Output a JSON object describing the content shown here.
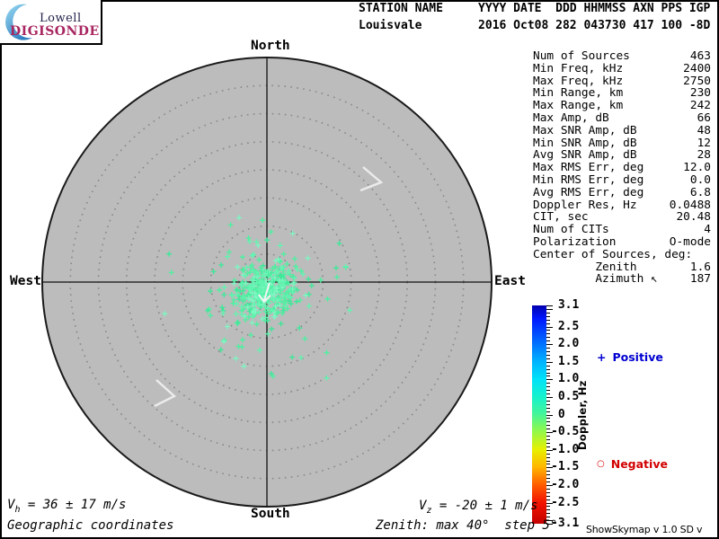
{
  "brand": {
    "top": "Lowell",
    "bottom": "DIGISONDE",
    "accent_color": "#a82560",
    "crescent_colors": [
      "#9bdcf2",
      "#2f7ec2"
    ]
  },
  "header": {
    "line1": "STATION NAME     YYYY DATE  DDD HHMMSS AXN PPS IGP",
    "line2": "Louisvale        2016 Oct08 282 043730 417 100 -8D"
  },
  "compass": {
    "north": "North",
    "south": "South",
    "east": "East",
    "west": "West"
  },
  "stats": {
    "rows": [
      {
        "label": "Num of Sources",
        "value": "463"
      },
      {
        "label": "Min Freq, kHz",
        "value": "2400"
      },
      {
        "label": "Max Freq, kHz",
        "value": "2750"
      },
      {
        "label": "Min Range, km",
        "value": "230"
      },
      {
        "label": "Max Range, km",
        "value": "242"
      },
      {
        "label": "Max Amp, dB",
        "value": "66"
      },
      {
        "label": "Max SNR Amp, dB",
        "value": "48"
      },
      {
        "label": "Min SNR Amp, dB",
        "value": "12"
      },
      {
        "label": "Avg SNR Amp, dB",
        "value": "28"
      },
      {
        "label": "Max RMS Err, deg",
        "value": "12.0"
      },
      {
        "label": "Min RMS Err, deg",
        "value": "0.0"
      },
      {
        "label": "Avg RMS Err, deg",
        "value": "6.8"
      },
      {
        "label": "Doppler Res, Hz",
        "value": "0.0488"
      },
      {
        "label": "CIT, sec",
        "value": "20.48"
      },
      {
        "label": "Num of CITs",
        "value": "4"
      },
      {
        "label": "Polarization",
        "value": "O-mode"
      },
      {
        "label": "Center of Sources, deg:",
        "value": ""
      },
      {
        "label": "         Zenith",
        "value": "1.6"
      },
      {
        "label": "         Azimuth ↖",
        "value": "187"
      }
    ]
  },
  "colorbar": {
    "title": "Doppler, Hz",
    "min": -3.1,
    "max": 3.1,
    "minor_step": 0.1,
    "labels": [
      {
        "v": 3.1,
        "text": " 3.1"
      },
      {
        "v": 2.5,
        "text": " 2.5"
      },
      {
        "v": 2.0,
        "text": " 2.0"
      },
      {
        "v": 1.5,
        "text": " 1.5"
      },
      {
        "v": 1.0,
        "text": " 1.0"
      },
      {
        "v": 0.5,
        "text": " 0.5"
      },
      {
        "v": 0.0,
        "text": " 0"
      },
      {
        "v": -0.5,
        "text": "-0.5"
      },
      {
        "v": -1.0,
        "text": "-1.0"
      },
      {
        "v": -1.5,
        "text": "-1.5"
      },
      {
        "v": -2.0,
        "text": "-2.0"
      },
      {
        "v": -2.5,
        "text": "-2.5"
      },
      {
        "v": -3.1,
        "text": "-3.1"
      }
    ],
    "gradient": [
      {
        "p": 0.0,
        "c": "#0000ae"
      },
      {
        "p": 0.06,
        "c": "#0018ff"
      },
      {
        "p": 0.177,
        "c": "#0072ff"
      },
      {
        "p": 0.258,
        "c": "#00b4ff"
      },
      {
        "p": 0.339,
        "c": "#00e2f8"
      },
      {
        "p": 0.419,
        "c": "#16f2cc"
      },
      {
        "p": 0.5,
        "c": "#46f596"
      },
      {
        "p": 0.581,
        "c": "#96f846"
      },
      {
        "p": 0.661,
        "c": "#e8f000"
      },
      {
        "p": 0.742,
        "c": "#ffb400"
      },
      {
        "p": 0.823,
        "c": "#ff5c00"
      },
      {
        "p": 0.903,
        "c": "#f21400"
      },
      {
        "p": 1.0,
        "c": "#c40000"
      }
    ]
  },
  "legend": {
    "positive": {
      "marker": "+",
      "label": "Positive",
      "color": "#0000d2"
    },
    "negative": {
      "marker": "○",
      "label": "Negative",
      "color": "#d20000"
    }
  },
  "footer": {
    "vh": {
      "sym": "V",
      "sub": "h",
      "rest": " = 36 ± 17 m/s"
    },
    "vz": {
      "sym": "V",
      "sub": "z",
      "rest": " = -20 ± 1 m/s"
    },
    "coords": "Geographic coordinates",
    "zenith_note": "Zenith: max 40°  step 5°",
    "version": "ShowSkymap v 1.0  SD v 5.1"
  },
  "chart_data": {
    "type": "scatter",
    "projection": "polar skymap, zenith angle radial / azimuth angular, geographic coordinates",
    "rings_deg": [
      5,
      10,
      15,
      20,
      25,
      30,
      35,
      40
    ],
    "zenith_max_deg": 40,
    "zenith_step_deg": 5,
    "num_sources": 463,
    "doppler_scale_hz": {
      "min": -3.1,
      "max": 3.1
    },
    "dominant_doppler_hz": "all sources ~0 to +0.5 Hz (mint-green positive crosses)",
    "point_marker": "+",
    "point_colors": [
      "#4df0a0",
      "#62f4b0",
      "#3ce898",
      "#7df7c2"
    ],
    "cluster": {
      "center_zenith_deg": 1.6,
      "center_azimuth_deg": 187,
      "core_sigma_deg": 2.4,
      "tail_sigma_deg": 6.8,
      "tail_fraction": 0.28,
      "max_extent_deg": 24
    },
    "background_disk_color": "#bcbcbc",
    "marks": [
      "rotation-chevron-ne",
      "rotation-chevron-sw",
      "center-drift-arrow"
    ],
    "velocities": {
      "vh_ms": "36 ± 17",
      "vz_ms": "-20 ± 1"
    },
    "seed": 463
  }
}
